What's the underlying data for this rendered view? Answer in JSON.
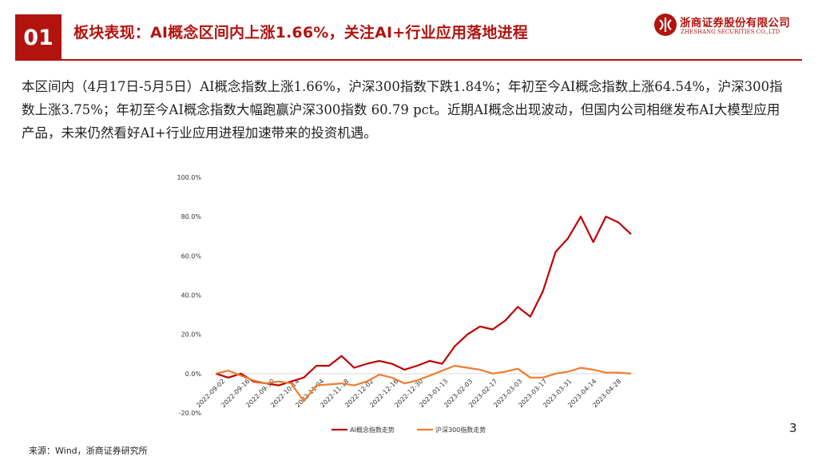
{
  "header": {
    "section_number": "01",
    "title": "板块表现：AI概念区间内上涨1.66%，关注AI+行业应用落地进程",
    "accent_color": "#b3130f"
  },
  "logo": {
    "name_cn": "浙商证券股份有限公司",
    "name_en": "ZHESHANG SECURITIES CO.,LTD",
    "icon": "zheshang-logo-mark"
  },
  "body_text": "本区间内（4月17日-5月5日）AI概念指数上涨1.66%，沪深300指数下跌1.84%；年初至今AI概念指数上涨64.54%，沪深300指数上涨3.75%；年初至今AI概念指数大幅跑赢沪深300指数 60.79 pct。近期AI概念出现波动，但国内公司相继发布AI大模型应用产品，未来仍然看好AI+行业应用进程加速带来的投资机遇。",
  "chart_data": {
    "type": "line",
    "xlabel": "",
    "ylabel": "",
    "ylim": [
      -20,
      100
    ],
    "y_ticks": [
      "-20.0%",
      "0.0%",
      "20.0%",
      "40.0%",
      "60.0%",
      "80.0%",
      "100.0%"
    ],
    "x_ticks": [
      "2022-09-02",
      "2022-09-16",
      "2022-09-30",
      "2022-10-14",
      "2022-11-04",
      "2022-11-18",
      "2022-12-02",
      "2022-12-16",
      "2022-12-30",
      "2023-01-13",
      "2023-02-03",
      "2023-02-17",
      "2023-03-03",
      "2023-03-17",
      "2023-03-31",
      "2023-04-14",
      "2023-04-28"
    ],
    "legend_position": "bottom",
    "grid": false,
    "series": [
      {
        "name": "AI概念指数走势",
        "color": "#c00000",
        "values": [
          0,
          -2,
          0,
          -4,
          -5,
          -6,
          -4,
          -2,
          4,
          4,
          9,
          3,
          5,
          6.5,
          5,
          2,
          4,
          6.5,
          5,
          14,
          20,
          24,
          22.5,
          27,
          34,
          29,
          42,
          62,
          69,
          80,
          67,
          80,
          77,
          71
        ]
      },
      {
        "name": "沪深300指数走势",
        "color": "#ed7d31",
        "values": [
          0,
          1.5,
          -1,
          -3.5,
          -5,
          -4,
          -5,
          -14,
          -6,
          -5.5,
          -5,
          -6,
          -4,
          -0.5,
          -2,
          -5,
          -3.5,
          -1,
          1.5,
          4,
          3,
          2,
          0,
          1,
          2.5,
          -2,
          -2,
          0,
          1,
          3,
          2,
          0.5,
          0.5,
          0
        ]
      }
    ]
  },
  "page_number": "3",
  "source": "来源：Wind，浙商证券研究所"
}
